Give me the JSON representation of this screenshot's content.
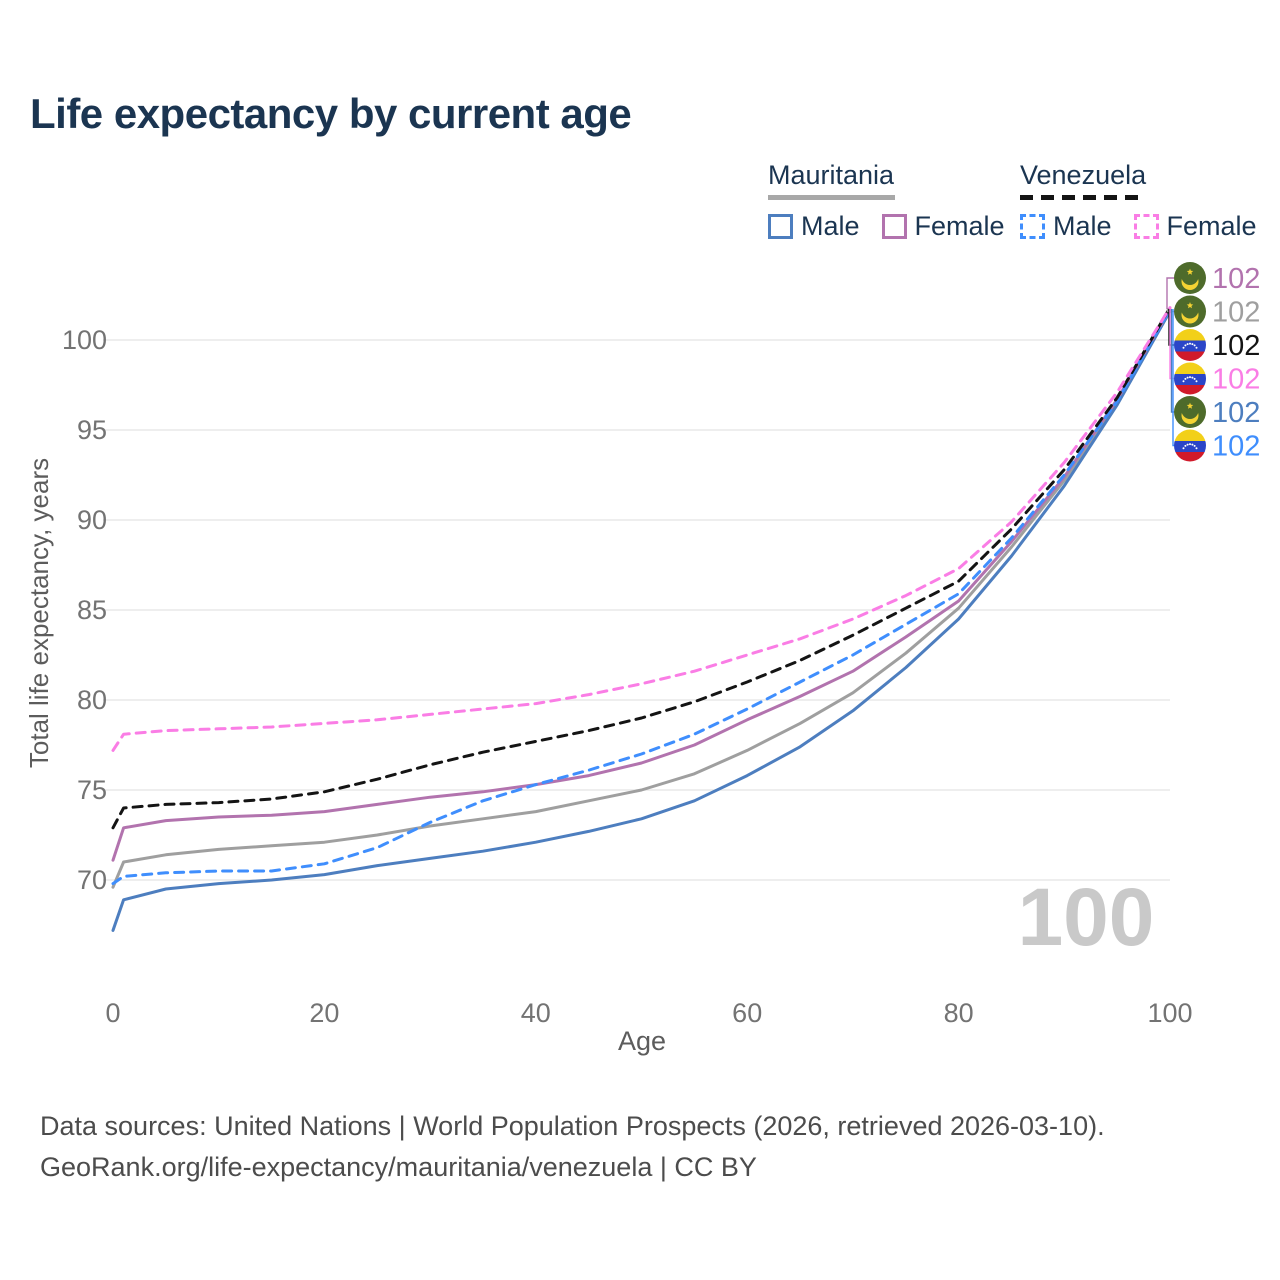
{
  "title": "Life expectancy by current age",
  "legend": {
    "mauritania": {
      "label": "Mauritania",
      "male": "Male",
      "female": "Female",
      "male_color": "#4d7ebf",
      "female_color": "#b273ae",
      "underline_color": "#a8a8a8",
      "line_style": "solid"
    },
    "venezuela": {
      "label": "Venezuela",
      "male": "Male",
      "female": "Female",
      "male_color": "#3f8efd",
      "female_color": "#fa7de5",
      "underline_color": "#141414",
      "line_style": "dashed"
    }
  },
  "colors": {
    "title_text": "#1b3551",
    "grid": "#e9e9e9",
    "tick_text": "#737373",
    "axis_title_text": "#5c5c5c",
    "watermark": "#c9c9c9",
    "footer_text": "#4c4c4c"
  },
  "chart_data": {
    "type": "line",
    "title": "Life expectancy by current age",
    "xlabel": "Age",
    "ylabel": "Total life expectancy, years",
    "x_ticks": [
      0,
      20,
      40,
      60,
      80,
      100
    ],
    "y_ticks": [
      70,
      75,
      80,
      85,
      90,
      95,
      100
    ],
    "xlim": [
      0,
      100
    ],
    "ylim": [
      66.5,
      103
    ],
    "grid": true,
    "legend_position": "top-right",
    "age_counter_watermark": "100",
    "x": [
      0,
      1,
      5,
      10,
      15,
      20,
      25,
      30,
      35,
      40,
      45,
      50,
      55,
      60,
      65,
      70,
      75,
      80,
      85,
      90,
      95,
      100
    ],
    "series": [
      {
        "id": "mauritania-total",
        "name": "Mauritania (both sexes)",
        "country": "Mauritania",
        "sex": "Total",
        "color": "#9f9f9f",
        "dashed": false,
        "flag": "mauritania",
        "right_label": "102",
        "right_row": 1,
        "values": [
          69.6,
          71.0,
          71.4,
          71.7,
          71.9,
          72.1,
          72.5,
          73.0,
          73.4,
          73.8,
          74.4,
          75.0,
          75.9,
          77.2,
          78.7,
          80.4,
          82.6,
          85.1,
          88.5,
          92.2,
          96.6,
          101.6
        ]
      },
      {
        "id": "mauritania-male",
        "name": "Mauritania Male",
        "country": "Mauritania",
        "sex": "Male",
        "color": "#4d7ebf",
        "dashed": false,
        "flag": "mauritania",
        "right_label": "102",
        "right_row": 4,
        "values": [
          67.2,
          68.9,
          69.5,
          69.8,
          70.0,
          70.3,
          70.8,
          71.2,
          71.6,
          72.1,
          72.7,
          73.4,
          74.4,
          75.8,
          77.4,
          79.4,
          81.8,
          84.5,
          88.0,
          91.9,
          96.4,
          101.6
        ]
      },
      {
        "id": "mauritania-female",
        "name": "Mauritania Female",
        "country": "Mauritania",
        "sex": "Female",
        "color": "#b273ae",
        "dashed": false,
        "flag": "mauritania",
        "right_label": "102",
        "right_row": 0,
        "values": [
          71.1,
          72.9,
          73.3,
          73.5,
          73.6,
          73.8,
          74.2,
          74.6,
          74.9,
          75.3,
          75.8,
          76.5,
          77.5,
          78.9,
          80.2,
          81.6,
          83.5,
          85.5,
          88.8,
          92.4,
          96.7,
          101.7
        ]
      },
      {
        "id": "venezuela-male",
        "name": "Venezuela Male",
        "country": "Venezuela",
        "sex": "Male",
        "color": "#3f8efd",
        "dashed": true,
        "flag": "venezuela",
        "right_label": "102",
        "right_row": 5,
        "values": [
          69.8,
          70.2,
          70.4,
          70.5,
          70.5,
          70.9,
          71.8,
          73.2,
          74.4,
          75.3,
          76.1,
          77.0,
          78.1,
          79.5,
          81.0,
          82.5,
          84.2,
          85.9,
          89.0,
          92.5,
          96.6,
          101.7
        ]
      },
      {
        "id": "venezuela-total",
        "name": "Venezuela (both sexes)",
        "country": "Venezuela",
        "sex": "Total",
        "color": "#141414",
        "dashed": true,
        "flag": "venezuela",
        "right_label": "102",
        "right_row": 2,
        "values": [
          72.9,
          74.0,
          74.2,
          74.3,
          74.5,
          74.9,
          75.6,
          76.4,
          77.1,
          77.7,
          78.3,
          79.0,
          79.9,
          81.0,
          82.2,
          83.6,
          85.1,
          86.6,
          89.5,
          92.8,
          96.8,
          101.8
        ]
      },
      {
        "id": "venezuela-female",
        "name": "Venezuela Female",
        "country": "Venezuela",
        "sex": "Female",
        "color": "#fa7de5",
        "dashed": true,
        "flag": "venezuela",
        "right_label": "102",
        "right_row": 3,
        "values": [
          77.2,
          78.1,
          78.3,
          78.4,
          78.5,
          78.7,
          78.9,
          79.2,
          79.5,
          79.8,
          80.3,
          80.9,
          81.6,
          82.5,
          83.4,
          84.5,
          85.8,
          87.3,
          89.9,
          93.2,
          97.1,
          101.8
        ]
      }
    ]
  },
  "footer": {
    "line1": "Data sources: United Nations | World Population Prospects (2026, retrieved 2026-03-10).",
    "line2": "GeoRank.org/life-expectancy/mauritania/venezuela | CC BY"
  }
}
